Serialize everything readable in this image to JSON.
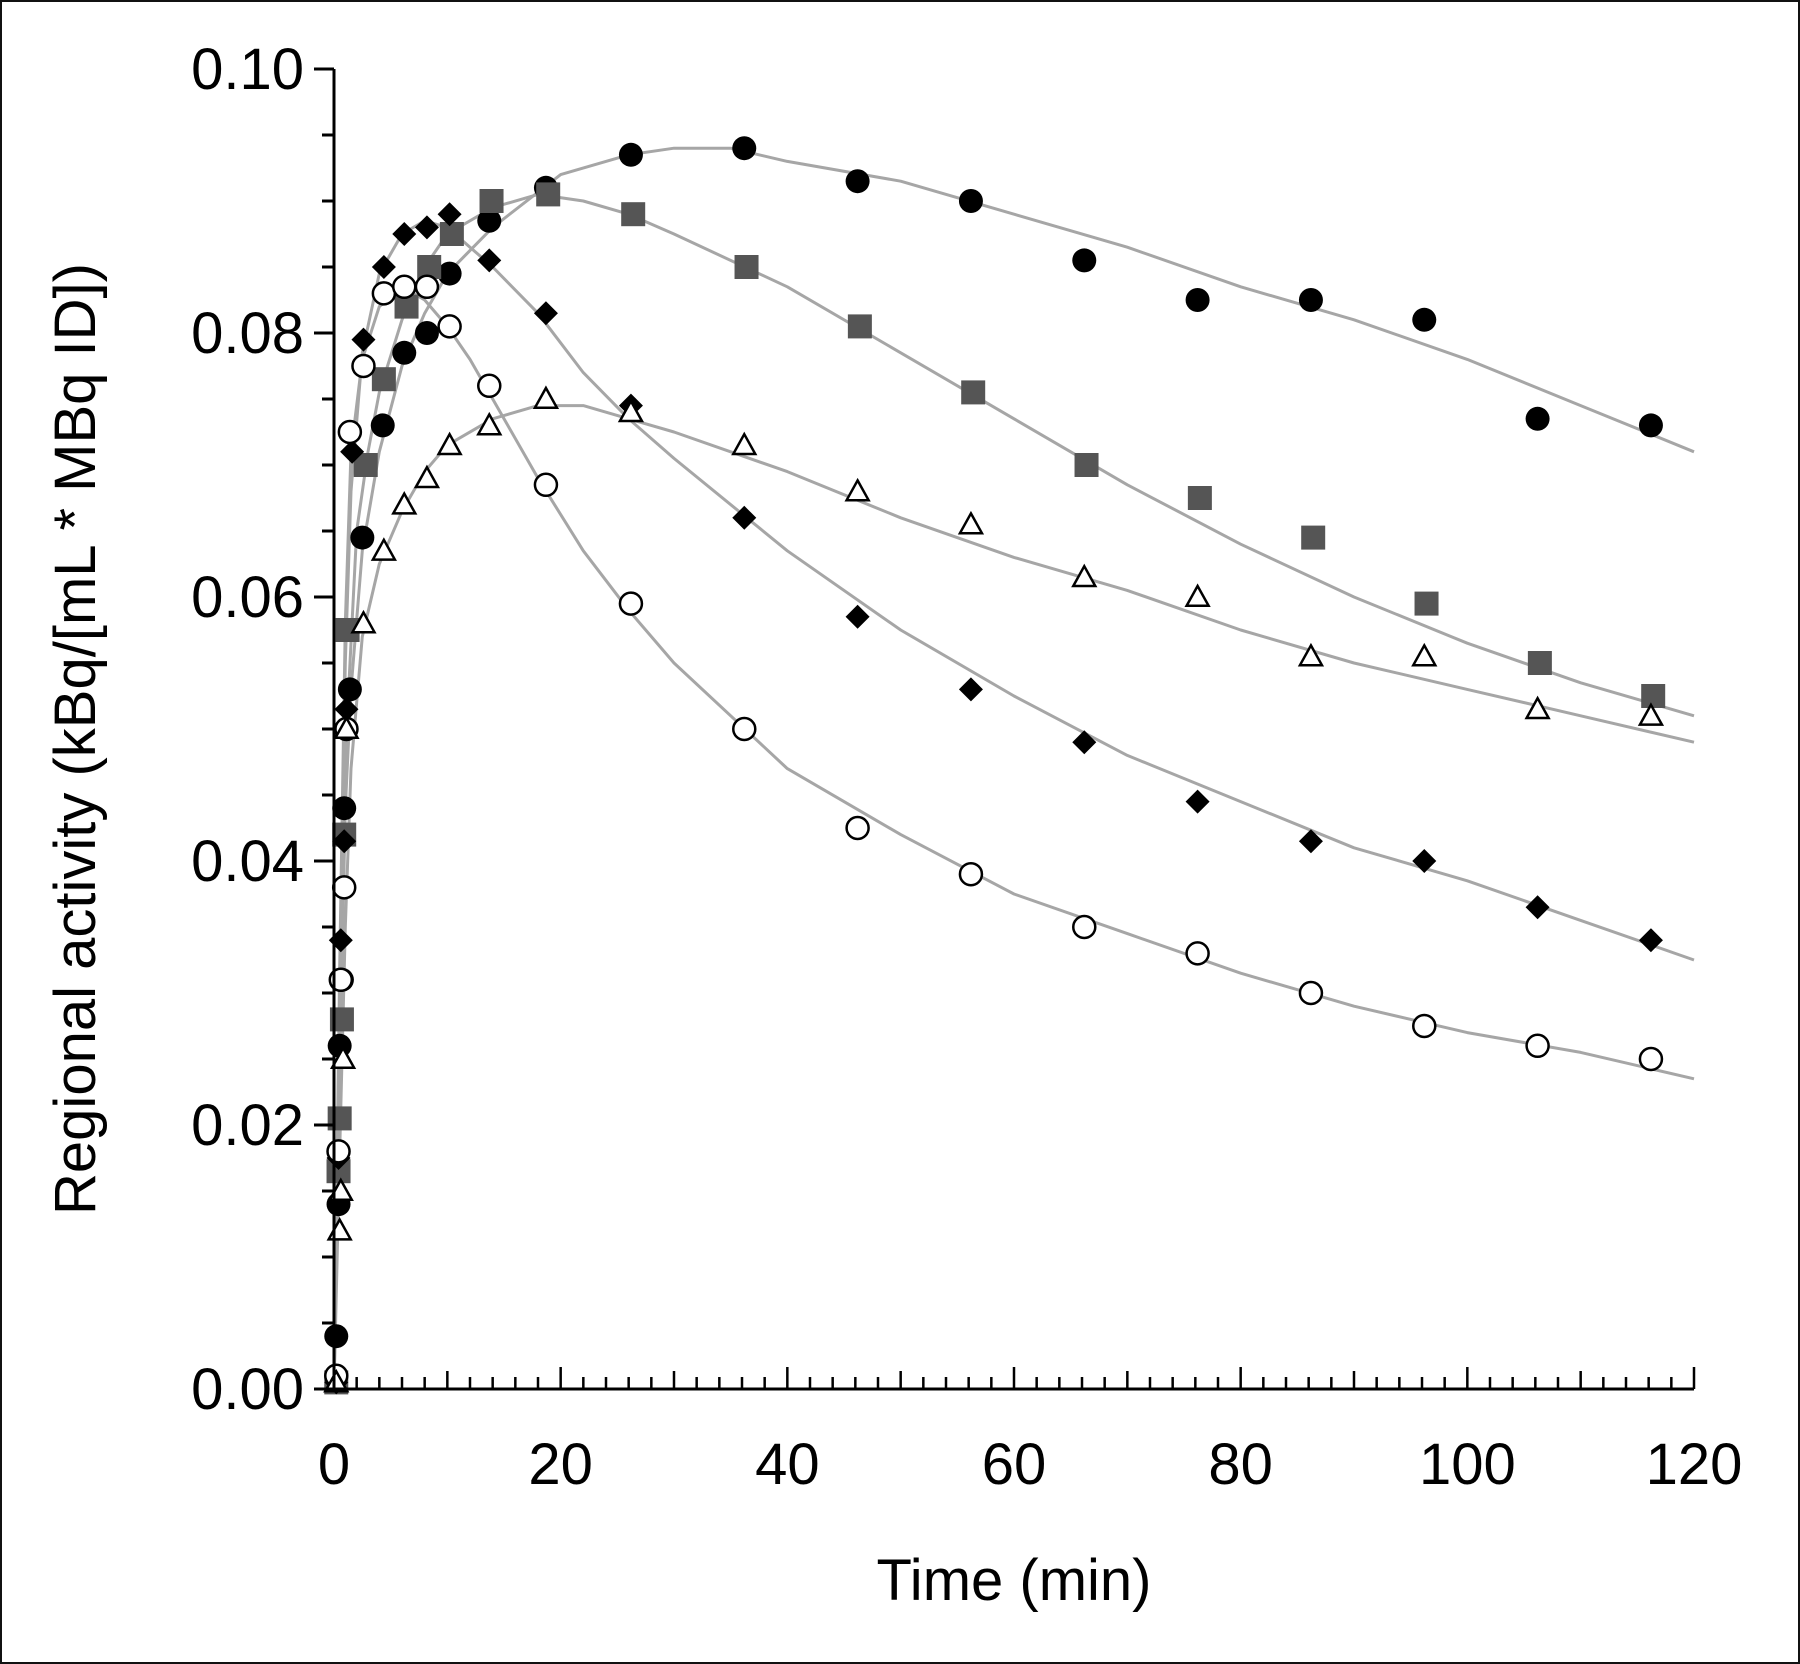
{
  "chart_data": {
    "type": "scatter",
    "title": "",
    "xlabel": "Time (min)",
    "ylabel": "Regional activity (kBq/[mL * MBq ID])",
    "xlim": [
      0,
      120
    ],
    "ylim": [
      0,
      0.1
    ],
    "x_ticks": [
      "0",
      "20",
      "40",
      "60",
      "80",
      "100",
      "120"
    ],
    "y_ticks": [
      "0.00",
      "0.02",
      "0.04",
      "0.06",
      "0.08",
      "0.10"
    ],
    "grid": false,
    "legend": "none",
    "colors": {
      "fit_line": "#a6a6a6",
      "filled_marker": "#000000",
      "square_marker": "#555555",
      "axis": "#000000"
    },
    "series": [
      {
        "marker": "filled-circle",
        "points": [
          [
            0.2,
            0.004
          ],
          [
            0.4,
            0.014
          ],
          [
            0.5,
            0.026
          ],
          [
            0.7,
            0.031
          ],
          [
            0.9,
            0.044
          ],
          [
            1.4,
            0.053
          ],
          [
            2.5,
            0.0645
          ],
          [
            4.3,
            0.073
          ],
          [
            6.2,
            0.0785
          ],
          [
            8.2,
            0.08
          ],
          [
            10.2,
            0.0845
          ],
          [
            13.7,
            0.0885
          ],
          [
            18.7,
            0.091
          ],
          [
            26.2,
            0.0935
          ],
          [
            36.2,
            0.094
          ],
          [
            46.2,
            0.0915
          ],
          [
            56.2,
            0.09
          ],
          [
            66.2,
            0.0855
          ],
          [
            76.2,
            0.0825
          ],
          [
            86.2,
            0.0825
          ],
          [
            96.2,
            0.081
          ],
          [
            106.2,
            0.0735
          ],
          [
            116.2,
            0.073
          ]
        ],
        "fit": [
          [
            0,
            0
          ],
          [
            0.5,
            0.024
          ],
          [
            1,
            0.044
          ],
          [
            1.5,
            0.053
          ],
          [
            2.5,
            0.0635
          ],
          [
            4,
            0.071
          ],
          [
            6,
            0.0775
          ],
          [
            8,
            0.0815
          ],
          [
            10,
            0.0845
          ],
          [
            14,
            0.088
          ],
          [
            20,
            0.092
          ],
          [
            26,
            0.0935
          ],
          [
            30,
            0.094
          ],
          [
            35,
            0.094
          ],
          [
            40,
            0.093
          ],
          [
            50,
            0.0915
          ],
          [
            60,
            0.089
          ],
          [
            70,
            0.0865
          ],
          [
            80,
            0.0835
          ],
          [
            90,
            0.081
          ],
          [
            100,
            0.078
          ],
          [
            110,
            0.0745
          ],
          [
            120,
            0.071
          ]
        ]
      },
      {
        "marker": "filled-square",
        "points": [
          [
            0.2,
            0.0005
          ],
          [
            0.4,
            0.0165
          ],
          [
            0.5,
            0.0205
          ],
          [
            0.7,
            0.028
          ],
          [
            0.9,
            0.042
          ],
          [
            1.2,
            0.0575
          ],
          [
            2.8,
            0.07
          ],
          [
            4.4,
            0.0765
          ],
          [
            6.4,
            0.082
          ],
          [
            8.4,
            0.085
          ],
          [
            10.4,
            0.0875
          ],
          [
            13.9,
            0.09
          ],
          [
            18.9,
            0.0905
          ],
          [
            26.4,
            0.089
          ],
          [
            36.4,
            0.085
          ],
          [
            46.4,
            0.0805
          ],
          [
            56.4,
            0.0755
          ],
          [
            66.4,
            0.07
          ],
          [
            76.4,
            0.0675
          ],
          [
            86.4,
            0.0645
          ],
          [
            96.4,
            0.0595
          ],
          [
            106.4,
            0.055
          ],
          [
            116.4,
            0.0525
          ]
        ],
        "fit": [
          [
            0,
            0
          ],
          [
            0.5,
            0.026
          ],
          [
            1,
            0.048
          ],
          [
            2,
            0.065
          ],
          [
            3,
            0.071
          ],
          [
            4,
            0.0755
          ],
          [
            6,
            0.081
          ],
          [
            8,
            0.085
          ],
          [
            10,
            0.0875
          ],
          [
            14,
            0.0895
          ],
          [
            18,
            0.0905
          ],
          [
            22,
            0.09
          ],
          [
            26,
            0.089
          ],
          [
            30,
            0.0875
          ],
          [
            40,
            0.0835
          ],
          [
            50,
            0.0785
          ],
          [
            60,
            0.0735
          ],
          [
            70,
            0.0685
          ],
          [
            80,
            0.064
          ],
          [
            90,
            0.06
          ],
          [
            100,
            0.0565
          ],
          [
            110,
            0.0535
          ],
          [
            120,
            0.051
          ]
        ]
      },
      {
        "marker": "filled-diamond",
        "points": [
          [
            0.2,
            0.0005
          ],
          [
            0.4,
            0.0175
          ],
          [
            0.6,
            0.034
          ],
          [
            0.9,
            0.0415
          ],
          [
            1.1,
            0.0515
          ],
          [
            1.6,
            0.071
          ],
          [
            2.6,
            0.0795
          ],
          [
            4.4,
            0.085
          ],
          [
            6.2,
            0.0875
          ],
          [
            8.2,
            0.088
          ],
          [
            10.2,
            0.089
          ],
          [
            13.7,
            0.0855
          ],
          [
            18.7,
            0.0815
          ],
          [
            26.2,
            0.0745
          ],
          [
            36.2,
            0.066
          ],
          [
            46.2,
            0.0585
          ],
          [
            56.2,
            0.053
          ],
          [
            66.2,
            0.049
          ],
          [
            76.2,
            0.0445
          ],
          [
            86.2,
            0.0415
          ],
          [
            96.2,
            0.04
          ],
          [
            106.2,
            0.0365
          ],
          [
            116.2,
            0.034
          ]
        ],
        "fit": [
          [
            0,
            0
          ],
          [
            0.5,
            0.03
          ],
          [
            1,
            0.055
          ],
          [
            1.5,
            0.068
          ],
          [
            2.5,
            0.0785
          ],
          [
            4,
            0.0845
          ],
          [
            6,
            0.0875
          ],
          [
            8,
            0.0885
          ],
          [
            10,
            0.088
          ],
          [
            12,
            0.0865
          ],
          [
            14,
            0.085
          ],
          [
            18,
            0.0815
          ],
          [
            22,
            0.077
          ],
          [
            26,
            0.0735
          ],
          [
            30,
            0.0705
          ],
          [
            40,
            0.0635
          ],
          [
            50,
            0.0575
          ],
          [
            60,
            0.0525
          ],
          [
            70,
            0.048
          ],
          [
            80,
            0.0445
          ],
          [
            90,
            0.041
          ],
          [
            100,
            0.0385
          ],
          [
            110,
            0.0355
          ],
          [
            120,
            0.0325
          ]
        ]
      },
      {
        "marker": "open-circle",
        "points": [
          [
            0.2,
            0.001
          ],
          [
            0.4,
            0.018
          ],
          [
            0.6,
            0.031
          ],
          [
            0.9,
            0.038
          ],
          [
            1.1,
            0.05
          ],
          [
            1.4,
            0.0725
          ],
          [
            2.6,
            0.0775
          ],
          [
            4.4,
            0.083
          ],
          [
            6.2,
            0.0835
          ],
          [
            8.2,
            0.0835
          ],
          [
            10.2,
            0.0805
          ],
          [
            13.7,
            0.076
          ],
          [
            18.7,
            0.0685
          ],
          [
            26.2,
            0.0595
          ],
          [
            36.2,
            0.05
          ],
          [
            46.2,
            0.0425
          ],
          [
            56.2,
            0.039
          ],
          [
            66.2,
            0.035
          ],
          [
            76.2,
            0.033
          ],
          [
            86.2,
            0.03
          ],
          [
            96.2,
            0.0275
          ],
          [
            106.2,
            0.026
          ],
          [
            116.2,
            0.025
          ]
        ],
        "fit": [
          [
            0,
            0
          ],
          [
            0.5,
            0.032
          ],
          [
            1,
            0.058
          ],
          [
            1.5,
            0.071
          ],
          [
            2.5,
            0.078
          ],
          [
            4,
            0.082
          ],
          [
            6,
            0.0835
          ],
          [
            8,
            0.0825
          ],
          [
            10,
            0.0805
          ],
          [
            12,
            0.078
          ],
          [
            14,
            0.075
          ],
          [
            18,
            0.069
          ],
          [
            22,
            0.0635
          ],
          [
            26,
            0.059
          ],
          [
            30,
            0.055
          ],
          [
            35,
            0.051
          ],
          [
            40,
            0.047
          ],
          [
            50,
            0.042
          ],
          [
            60,
            0.0375
          ],
          [
            70,
            0.0345
          ],
          [
            80,
            0.0315
          ],
          [
            90,
            0.029
          ],
          [
            100,
            0.027
          ],
          [
            110,
            0.0255
          ],
          [
            120,
            0.0235
          ]
        ]
      },
      {
        "marker": "open-triangle",
        "points": [
          [
            0.2,
            0.0005
          ],
          [
            0.5,
            0.012
          ],
          [
            0.6,
            0.015
          ],
          [
            0.8,
            0.025
          ],
          [
            1.1,
            0.05
          ],
          [
            2.6,
            0.058
          ],
          [
            4.4,
            0.0635
          ],
          [
            6.2,
            0.067
          ],
          [
            8.2,
            0.069
          ],
          [
            10.2,
            0.0715
          ],
          [
            13.7,
            0.073
          ],
          [
            18.7,
            0.075
          ],
          [
            26.2,
            0.074
          ],
          [
            36.2,
            0.0715
          ],
          [
            46.2,
            0.068
          ],
          [
            56.2,
            0.0655
          ],
          [
            66.2,
            0.0615
          ],
          [
            76.2,
            0.06
          ],
          [
            86.2,
            0.0555
          ],
          [
            96.2,
            0.0555
          ],
          [
            106.2,
            0.0515
          ],
          [
            116.2,
            0.051
          ]
        ],
        "fit": [
          [
            0,
            0
          ],
          [
            0.5,
            0.018
          ],
          [
            1,
            0.035
          ],
          [
            1.5,
            0.047
          ],
          [
            2.5,
            0.057
          ],
          [
            4,
            0.0625
          ],
          [
            6,
            0.0665
          ],
          [
            8,
            0.0695
          ],
          [
            10,
            0.0715
          ],
          [
            14,
            0.0735
          ],
          [
            18,
            0.0745
          ],
          [
            22,
            0.0745
          ],
          [
            26,
            0.0735
          ],
          [
            30,
            0.0725
          ],
          [
            40,
            0.0695
          ],
          [
            50,
            0.066
          ],
          [
            60,
            0.063
          ],
          [
            70,
            0.0605
          ],
          [
            80,
            0.0575
          ],
          [
            90,
            0.055
          ],
          [
            100,
            0.053
          ],
          [
            110,
            0.051
          ],
          [
            120,
            0.049
          ]
        ]
      }
    ]
  }
}
